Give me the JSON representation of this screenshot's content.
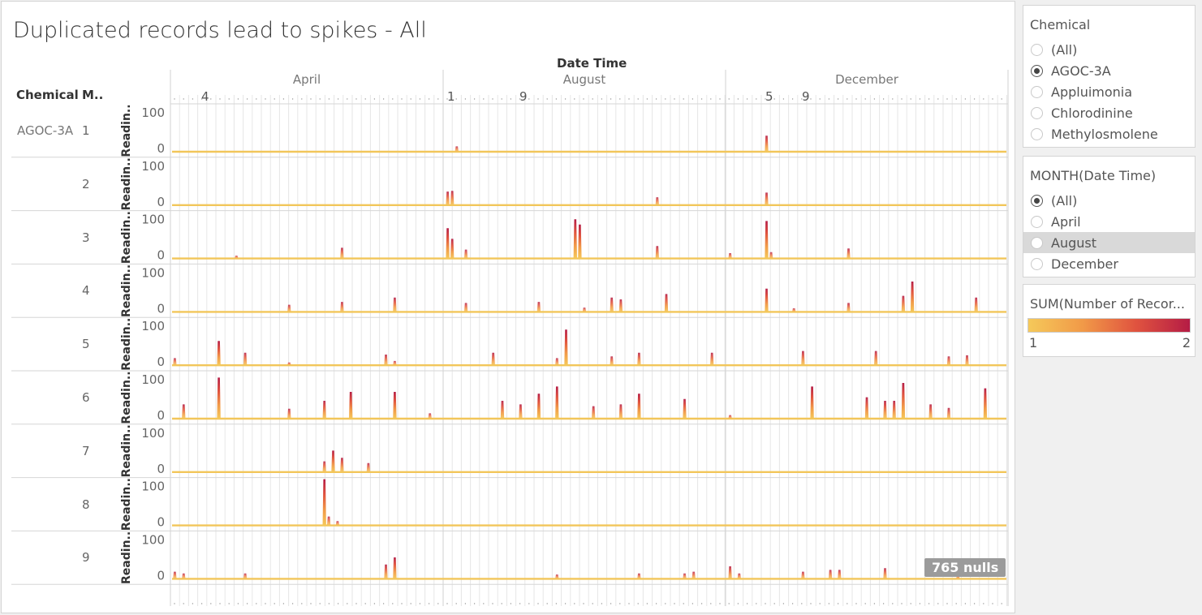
{
  "title": "Duplicated records lead to spikes - All",
  "null_badge": "765 nulls",
  "headers": {
    "chemical": "Chemical",
    "monitor": "M..",
    "date_time": "Date Time"
  },
  "chemical_label": "AGOC-3A",
  "row_axis_label": "Readin..",
  "months": [
    "April",
    "August",
    "December"
  ],
  "day_ticks": [
    "4",
    "1",
    "9",
    "5",
    "9"
  ],
  "filters": {
    "chemical": {
      "title": "Chemical",
      "options": [
        "(All)",
        "AGOC-3A",
        "Appluimonia",
        "Chlorodinine",
        "Methylosmolene"
      ],
      "selected": "AGOC-3A"
    },
    "month": {
      "title": "MONTH(Date Time)",
      "options": [
        "(All)",
        "April",
        "August",
        "December"
      ],
      "selected": "(All)",
      "hovered": "August"
    }
  },
  "legend": {
    "title": "SUM(Number of Recor...",
    "min_label": "1",
    "max_label": "2",
    "colors": [
      "#f5c95a",
      "#f19a48",
      "#e0533f",
      "#b51c45"
    ]
  },
  "chart_data": {
    "type": "area",
    "title": "Duplicated records lead to spikes - All",
    "xlabel": "Date Time",
    "ylabel": "Readin..",
    "ylim": [
      0,
      100
    ],
    "y_ticks": [
      0,
      100
    ],
    "x_months": [
      "April",
      "August",
      "December"
    ],
    "color_scale": {
      "measure": "SUM(Number of Records)",
      "min": 1,
      "max": 2
    },
    "baseline": 1,
    "series": [
      {
        "name": "1",
        "spikes": [
          {
            "month": "August",
            "day": 2,
            "value": 15
          },
          {
            "month": "December",
            "day": 5,
            "value": 45
          }
        ]
      },
      {
        "name": "2",
        "spikes": [
          {
            "month": "August",
            "day": 1,
            "value": 38
          },
          {
            "month": "August",
            "day": 1.5,
            "value": 40
          },
          {
            "month": "August",
            "day": 24,
            "value": 22
          },
          {
            "month": "December",
            "day": 5,
            "value": 35
          }
        ]
      },
      {
        "name": "3",
        "spikes": [
          {
            "month": "April",
            "day": 8,
            "value": 8
          },
          {
            "month": "April",
            "day": 20,
            "value": 30
          },
          {
            "month": "August",
            "day": 1,
            "value": 85
          },
          {
            "month": "August",
            "day": 1.5,
            "value": 55
          },
          {
            "month": "August",
            "day": 3,
            "value": 25
          },
          {
            "month": "August",
            "day": 15,
            "value": 110
          },
          {
            "month": "August",
            "day": 15.5,
            "value": 95
          },
          {
            "month": "August",
            "day": 24,
            "value": 35
          },
          {
            "month": "December",
            "day": 1,
            "value": 15
          },
          {
            "month": "December",
            "day": 5,
            "value": 105
          },
          {
            "month": "December",
            "day": 5.5,
            "value": 18
          },
          {
            "month": "December",
            "day": 14,
            "value": 28
          }
        ]
      },
      {
        "name": "4",
        "spikes": [
          {
            "month": "April",
            "day": 14,
            "value": 20
          },
          {
            "month": "April",
            "day": 20,
            "value": 28
          },
          {
            "month": "April",
            "day": 26,
            "value": 40
          },
          {
            "month": "August",
            "day": 3,
            "value": 25
          },
          {
            "month": "August",
            "day": 11,
            "value": 28
          },
          {
            "month": "August",
            "day": 16,
            "value": 12
          },
          {
            "month": "August",
            "day": 19,
            "value": 40
          },
          {
            "month": "August",
            "day": 20,
            "value": 35
          },
          {
            "month": "August",
            "day": 25,
            "value": 50
          },
          {
            "month": "December",
            "day": 5,
            "value": 65
          },
          {
            "month": "December",
            "day": 8,
            "value": 10
          },
          {
            "month": "December",
            "day": 14,
            "value": 25
          },
          {
            "month": "December",
            "day": 20,
            "value": 45
          },
          {
            "month": "December",
            "day": 21,
            "value": 85
          },
          {
            "month": "December",
            "day": 28,
            "value": 40
          }
        ]
      },
      {
        "name": "5",
        "spikes": [
          {
            "month": "April",
            "day": 1,
            "value": 20
          },
          {
            "month": "April",
            "day": 6,
            "value": 68
          },
          {
            "month": "April",
            "day": 9,
            "value": 35
          },
          {
            "month": "April",
            "day": 14,
            "value": 8
          },
          {
            "month": "April",
            "day": 25,
            "value": 30
          },
          {
            "month": "April",
            "day": 26,
            "value": 12
          },
          {
            "month": "August",
            "day": 6,
            "value": 35
          },
          {
            "month": "August",
            "day": 13,
            "value": 20
          },
          {
            "month": "August",
            "day": 14,
            "value": 100
          },
          {
            "month": "August",
            "day": 19,
            "value": 25
          },
          {
            "month": "August",
            "day": 22,
            "value": 35
          },
          {
            "month": "August",
            "day": 30,
            "value": 35
          },
          {
            "month": "December",
            "day": 9,
            "value": 40
          },
          {
            "month": "December",
            "day": 17,
            "value": 40
          },
          {
            "month": "December",
            "day": 25,
            "value": 25
          },
          {
            "month": "December",
            "day": 27,
            "value": 28
          }
        ]
      },
      {
        "name": "6",
        "spikes": [
          {
            "month": "April",
            "day": 2,
            "value": 40
          },
          {
            "month": "April",
            "day": 6,
            "value": 115
          },
          {
            "month": "April",
            "day": 14,
            "value": 28
          },
          {
            "month": "April",
            "day": 18,
            "value": 50
          },
          {
            "month": "April",
            "day": 21,
            "value": 75
          },
          {
            "month": "April",
            "day": 26,
            "value": 75
          },
          {
            "month": "April",
            "day": 30,
            "value": 15
          },
          {
            "month": "August",
            "day": 7,
            "value": 50
          },
          {
            "month": "August",
            "day": 9,
            "value": 40
          },
          {
            "month": "August",
            "day": 11,
            "value": 70
          },
          {
            "month": "August",
            "day": 13,
            "value": 90
          },
          {
            "month": "August",
            "day": 17,
            "value": 35
          },
          {
            "month": "August",
            "day": 20,
            "value": 40
          },
          {
            "month": "August",
            "day": 22,
            "value": 70
          },
          {
            "month": "August",
            "day": 27,
            "value": 55
          },
          {
            "month": "December",
            "day": 1,
            "value": 10
          },
          {
            "month": "December",
            "day": 10,
            "value": 90
          },
          {
            "month": "December",
            "day": 16,
            "value": 60
          },
          {
            "month": "December",
            "day": 18,
            "value": 50
          },
          {
            "month": "December",
            "day": 19,
            "value": 50
          },
          {
            "month": "December",
            "day": 20,
            "value": 100
          },
          {
            "month": "December",
            "day": 23,
            "value": 40
          },
          {
            "month": "December",
            "day": 25,
            "value": 30
          },
          {
            "month": "December",
            "day": 29,
            "value": 85
          }
        ]
      },
      {
        "name": "7",
        "spikes": [
          {
            "month": "April",
            "day": 18,
            "value": 30
          },
          {
            "month": "April",
            "day": 19,
            "value": 60
          },
          {
            "month": "April",
            "day": 20,
            "value": 40
          },
          {
            "month": "April",
            "day": 23,
            "value": 25
          }
        ]
      },
      {
        "name": "8",
        "spikes": [
          {
            "month": "April",
            "day": 18,
            "value": 135
          },
          {
            "month": "April",
            "day": 18.5,
            "value": 25
          },
          {
            "month": "April",
            "day": 19.5,
            "value": 12
          }
        ]
      },
      {
        "name": "9",
        "spikes": [
          {
            "month": "April",
            "day": 1,
            "value": 20
          },
          {
            "month": "April",
            "day": 2,
            "value": 15
          },
          {
            "month": "April",
            "day": 9,
            "value": 15
          },
          {
            "month": "April",
            "day": 25,
            "value": 40
          },
          {
            "month": "April",
            "day": 26,
            "value": 60
          },
          {
            "month": "August",
            "day": 13,
            "value": 12
          },
          {
            "month": "August",
            "day": 22,
            "value": 15
          },
          {
            "month": "August",
            "day": 27,
            "value": 15
          },
          {
            "month": "August",
            "day": 28,
            "value": 20
          },
          {
            "month": "December",
            "day": 1,
            "value": 35
          },
          {
            "month": "December",
            "day": 2,
            "value": 15
          },
          {
            "month": "December",
            "day": 9,
            "value": 20
          },
          {
            "month": "December",
            "day": 12,
            "value": 25
          },
          {
            "month": "December",
            "day": 13,
            "value": 25
          },
          {
            "month": "December",
            "day": 18,
            "value": 30
          },
          {
            "month": "December",
            "day": 26,
            "value": 10
          }
        ]
      }
    ]
  }
}
